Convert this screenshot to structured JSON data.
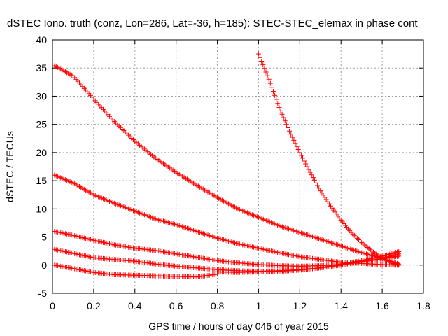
{
  "chart_data": {
    "type": "scatter",
    "title": "dSTEC Iono. truth (conz, Lon=286, Lat=-36, h=185): STEC-STEC_elemax in phase cont",
    "xlabel": "GPS time / hours of day 046 of year 2015",
    "ylabel": "dSTEC  / TECUs",
    "xlim": [
      0,
      1.8
    ],
    "ylim": [
      -5,
      40
    ],
    "x_ticks": [
      "0",
      "0.2",
      "0.4",
      "0.6",
      "0.8",
      "1",
      "1.2",
      "1.4",
      "1.6",
      "1.8"
    ],
    "y_ticks": [
      "-5",
      "0",
      "5",
      "10",
      "15",
      "20",
      "25",
      "30",
      "35",
      "40"
    ],
    "grid": true,
    "marker": "plus",
    "color": "#ff0000",
    "series": [
      {
        "points": [
          [
            0.01,
            35.4
          ],
          [
            0.1,
            33.6
          ],
          [
            0.2,
            29.5
          ],
          [
            0.3,
            25.5
          ],
          [
            0.4,
            22.0
          ],
          [
            0.5,
            19.0
          ],
          [
            0.6,
            16.5
          ],
          [
            0.7,
            14.2
          ],
          [
            0.8,
            12.0
          ],
          [
            0.9,
            10.0
          ],
          [
            1.0,
            8.5
          ],
          [
            1.1,
            7.0
          ],
          [
            1.2,
            5.8
          ],
          [
            1.3,
            4.6
          ],
          [
            1.4,
            3.4
          ],
          [
            1.5,
            2.2
          ],
          [
            1.6,
            1.2
          ],
          [
            1.68,
            0.2
          ]
        ]
      },
      {
        "points": [
          [
            0.01,
            16.0
          ],
          [
            0.1,
            14.6
          ],
          [
            0.2,
            12.5
          ],
          [
            0.3,
            11.0
          ],
          [
            0.4,
            9.6
          ],
          [
            0.5,
            8.2
          ],
          [
            0.6,
            7.2
          ],
          [
            0.7,
            6.0
          ],
          [
            0.8,
            4.8
          ],
          [
            0.9,
            3.8
          ],
          [
            1.0,
            3.0
          ],
          [
            1.1,
            2.2
          ],
          [
            1.2,
            1.5
          ],
          [
            1.3,
            1.0
          ],
          [
            1.4,
            0.5
          ],
          [
            1.5,
            0.3
          ],
          [
            1.6,
            0.1
          ],
          [
            1.68,
            0.0
          ]
        ]
      },
      {
        "points": [
          [
            0.01,
            6.0
          ],
          [
            0.1,
            5.3
          ],
          [
            0.2,
            4.4
          ],
          [
            0.3,
            3.6
          ],
          [
            0.4,
            3.0
          ],
          [
            0.5,
            2.6
          ],
          [
            0.6,
            2.0
          ],
          [
            0.7,
            1.4
          ],
          [
            0.8,
            0.8
          ],
          [
            0.9,
            0.4
          ],
          [
            1.0,
            0.1
          ],
          [
            1.1,
            -0.1
          ],
          [
            1.2,
            -0.2
          ],
          [
            1.3,
            -0.1
          ],
          [
            1.4,
            0.1
          ],
          [
            1.5,
            0.6
          ],
          [
            1.6,
            1.1
          ],
          [
            1.68,
            1.6
          ]
        ]
      },
      {
        "points": [
          [
            0.01,
            2.8
          ],
          [
            0.1,
            2.1
          ],
          [
            0.2,
            1.3
          ],
          [
            0.3,
            1.0
          ],
          [
            0.4,
            0.7
          ],
          [
            0.5,
            0.2
          ],
          [
            0.6,
            -0.2
          ],
          [
            0.7,
            -0.5
          ],
          [
            0.8,
            -0.8
          ],
          [
            0.9,
            -1.0
          ],
          [
            1.0,
            -1.1
          ],
          [
            1.1,
            -1.0
          ],
          [
            1.2,
            -0.8
          ],
          [
            1.3,
            -0.5
          ],
          [
            1.4,
            0.0
          ],
          [
            1.5,
            0.6
          ],
          [
            1.6,
            1.2
          ],
          [
            1.68,
            2.0
          ]
        ]
      },
      {
        "points": [
          [
            0.01,
            0.0
          ],
          [
            0.1,
            -0.6
          ],
          [
            0.2,
            -1.3
          ],
          [
            0.3,
            -1.7
          ],
          [
            0.4,
            -1.8
          ],
          [
            0.5,
            -1.9
          ],
          [
            0.6,
            -2.0
          ],
          [
            0.7,
            -2.1
          ],
          [
            0.8,
            -1.6
          ]
        ]
      },
      {
        "points": [
          [
            0.8,
            -1.2
          ],
          [
            0.9,
            -1.3
          ],
          [
            1.0,
            -1.2
          ],
          [
            1.1,
            -1.1
          ],
          [
            1.2,
            -0.9
          ],
          [
            1.3,
            -0.5
          ],
          [
            1.4,
            0.2
          ],
          [
            1.5,
            0.8
          ],
          [
            1.6,
            1.6
          ],
          [
            1.68,
            2.4
          ]
        ]
      },
      {
        "points": [
          [
            1.0,
            37.5
          ],
          [
            1.05,
            33.0
          ],
          [
            1.1,
            28.0
          ],
          [
            1.15,
            23.8
          ],
          [
            1.2,
            20.0
          ],
          [
            1.25,
            16.5
          ],
          [
            1.3,
            13.2
          ],
          [
            1.35,
            10.5
          ],
          [
            1.4,
            8.0
          ],
          [
            1.45,
            5.8
          ],
          [
            1.5,
            4.0
          ],
          [
            1.55,
            2.5
          ],
          [
            1.6,
            1.2
          ],
          [
            1.65,
            0.3
          ],
          [
            1.68,
            0.0
          ]
        ]
      }
    ]
  }
}
